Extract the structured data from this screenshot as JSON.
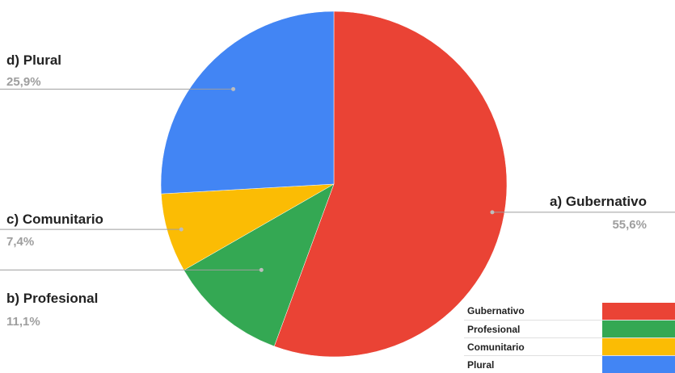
{
  "chart_data": {
    "type": "pie",
    "slices": [
      {
        "label": "a) Gubernativo",
        "value": 55.6,
        "pct_label": "55,6%",
        "color": "#ea4335"
      },
      {
        "label": "b) Profesional",
        "value": 11.1,
        "pct_label": "11,1%",
        "color": "#34a853"
      },
      {
        "label": "c) Comunitario",
        "value": 7.4,
        "pct_label": "7,4%",
        "color": "#fbbc04"
      },
      {
        "label": "d) Plural",
        "value": 25.9,
        "pct_label": "25,9%",
        "color": "#4285f4"
      }
    ],
    "legend": {
      "placement": "bottom-right",
      "entries": [
        {
          "label": "Gubernativo",
          "color": "#ea4335"
        },
        {
          "label": "Profesional",
          "color": "#34a853"
        },
        {
          "label": "Comunitario",
          "color": "#fbbc04"
        },
        {
          "label": "Plural",
          "color": "#4285f4"
        }
      ]
    }
  }
}
